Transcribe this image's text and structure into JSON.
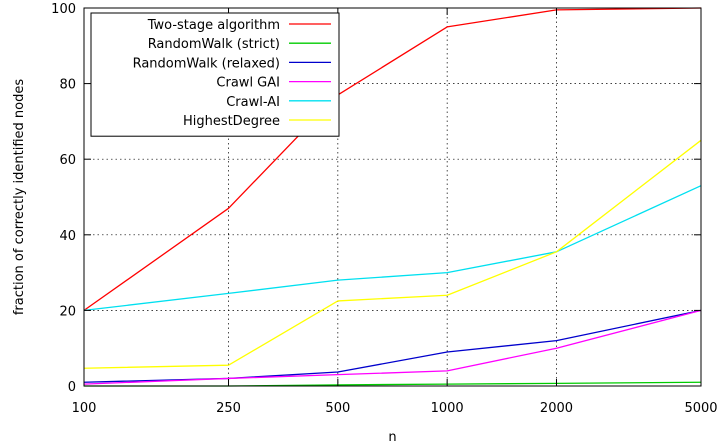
{
  "chart_data": {
    "type": "line",
    "title": "",
    "xlabel": "n",
    "ylabel": "fraction of correctly identified nodes",
    "x_scale": "log",
    "categories": [
      "100",
      "250",
      "500",
      "1000",
      "2000",
      "5000"
    ],
    "x": [
      100,
      250,
      500,
      1000,
      2000,
      5000
    ],
    "xlim": [
      100,
      5000
    ],
    "ylim": [
      0,
      100
    ],
    "yticks": [
      0,
      20,
      40,
      60,
      80,
      100
    ],
    "grid": true,
    "legend_position": "top-left",
    "series": [
      {
        "name": "Two-stage algorithm",
        "color": "#ff0000",
        "values": [
          20,
          47,
          77,
          95,
          99.5,
          100
        ]
      },
      {
        "name": "RandomWalk (strict)",
        "color": "#00cc00",
        "values": [
          0,
          0,
          0.3,
          0.5,
          0.7,
          1
        ]
      },
      {
        "name": "RandomWalk (relaxed)",
        "color": "#0000cc",
        "values": [
          1,
          2,
          3.7,
          9,
          12,
          20
        ]
      },
      {
        "name": "Crawl GAI",
        "color": "#ff00ff",
        "values": [
          0.5,
          2,
          3,
          4,
          10,
          20
        ]
      },
      {
        "name": "Crawl-AI",
        "color": "#00e0f0",
        "values": [
          20,
          24.5,
          28,
          30,
          35.5,
          53
        ]
      },
      {
        "name": "HighestDegree",
        "color": "#ffff00",
        "values": [
          4.7,
          5.5,
          22.5,
          24,
          35.5,
          65
        ]
      }
    ]
  }
}
